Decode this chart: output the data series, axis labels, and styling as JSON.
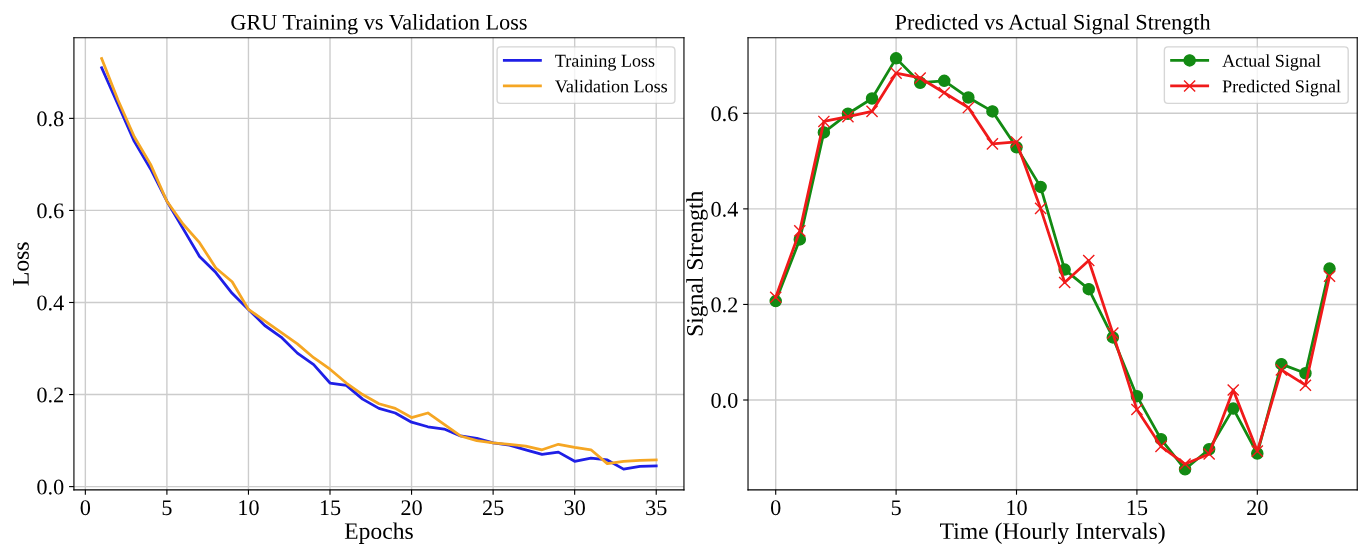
{
  "chart_data": [
    {
      "type": "line",
      "title": "GRU Training vs Validation Loss",
      "xlabel": "Epochs",
      "ylabel": "Loss",
      "x": [
        1,
        2,
        3,
        4,
        5,
        6,
        7,
        8,
        9,
        10,
        11,
        12,
        13,
        14,
        15,
        16,
        17,
        18,
        19,
        20,
        21,
        22,
        23,
        24,
        25,
        26,
        27,
        28,
        29,
        30,
        31,
        32,
        33,
        34,
        35
      ],
      "series": [
        {
          "name": "Training Loss",
          "color": "#1f1fe6",
          "values": [
            0.91,
            0.83,
            0.75,
            0.69,
            0.62,
            0.56,
            0.5,
            0.465,
            0.42,
            0.385,
            0.35,
            0.325,
            0.29,
            0.265,
            0.225,
            0.22,
            0.19,
            0.17,
            0.16,
            0.14,
            0.13,
            0.125,
            0.11,
            0.105,
            0.095,
            0.09,
            0.08,
            0.07,
            0.075,
            0.055,
            0.062,
            0.058,
            0.038,
            0.044,
            0.045
          ]
        },
        {
          "name": "Validation Loss",
          "color": "#f5a623",
          "values": [
            0.93,
            0.84,
            0.76,
            0.7,
            0.62,
            0.57,
            0.53,
            0.475,
            0.445,
            0.385,
            0.36,
            0.335,
            0.31,
            0.28,
            0.255,
            0.225,
            0.2,
            0.18,
            0.17,
            0.15,
            0.16,
            0.135,
            0.11,
            0.1,
            0.095,
            0.092,
            0.088,
            0.08,
            0.092,
            0.085,
            0.08,
            0.05,
            0.055,
            0.057,
            0.058
          ]
        }
      ],
      "xlim": [
        -0.7,
        36.7
      ],
      "ylim": [
        -0.007,
        0.975
      ],
      "xticks": [
        0,
        5,
        10,
        15,
        20,
        25,
        30,
        35
      ],
      "yticks": [
        {
          "value": 0,
          "label": "0.0"
        },
        {
          "value": 0.2,
          "label": "0.2"
        },
        {
          "value": 0.4,
          "label": "0.4"
        },
        {
          "value": 0.6,
          "label": "0.6"
        },
        {
          "value": 0.8,
          "label": "0.8"
        }
      ],
      "grid": true,
      "legend": "top right",
      "marker": "none",
      "line_style": "solid"
    },
    {
      "type": "line",
      "title": "Predicted vs Actual Signal Strength",
      "xlabel": "Time (Hourly Intervals)",
      "ylabel": "Signal Strength",
      "x": [
        0,
        1,
        2,
        3,
        4,
        5,
        6,
        7,
        8,
        9,
        10,
        11,
        12,
        13,
        14,
        15,
        16,
        17,
        18,
        19,
        20,
        21,
        22,
        23
      ],
      "series": [
        {
          "name": "Actual Signal",
          "color": "#138a13",
          "marker": "circle",
          "values": [
            0.207,
            0.336,
            0.56,
            0.599,
            0.631,
            0.715,
            0.664,
            0.668,
            0.633,
            0.604,
            0.529,
            0.446,
            0.273,
            0.232,
            0.131,
            0.008,
            -0.082,
            -0.145,
            -0.103,
            -0.018,
            -0.112,
            0.075,
            0.056,
            0.275
          ]
        },
        {
          "name": "Predicted Signal",
          "color": "#f01a1a",
          "marker": "cross",
          "values": [
            0.215,
            0.354,
            0.583,
            0.593,
            0.604,
            0.684,
            0.674,
            0.643,
            0.612,
            0.536,
            0.54,
            0.401,
            0.246,
            0.292,
            0.14,
            -0.02,
            -0.097,
            -0.134,
            -0.113,
            0.021,
            -0.107,
            0.063,
            0.031,
            0.259
          ]
        }
      ],
      "xlim": [
        -1.15,
        24.15
      ],
      "ylim": [
        -0.188,
        0.758
      ],
      "xticks": [
        0,
        5,
        10,
        15,
        20
      ],
      "yticks": [
        {
          "value": 0,
          "label": "0.0"
        },
        {
          "value": 0.2,
          "label": "0.2"
        },
        {
          "value": 0.4,
          "label": "0.4"
        },
        {
          "value": 0.6,
          "label": "0.6"
        }
      ],
      "grid": true,
      "legend": "top right",
      "line_style": "solid"
    }
  ]
}
